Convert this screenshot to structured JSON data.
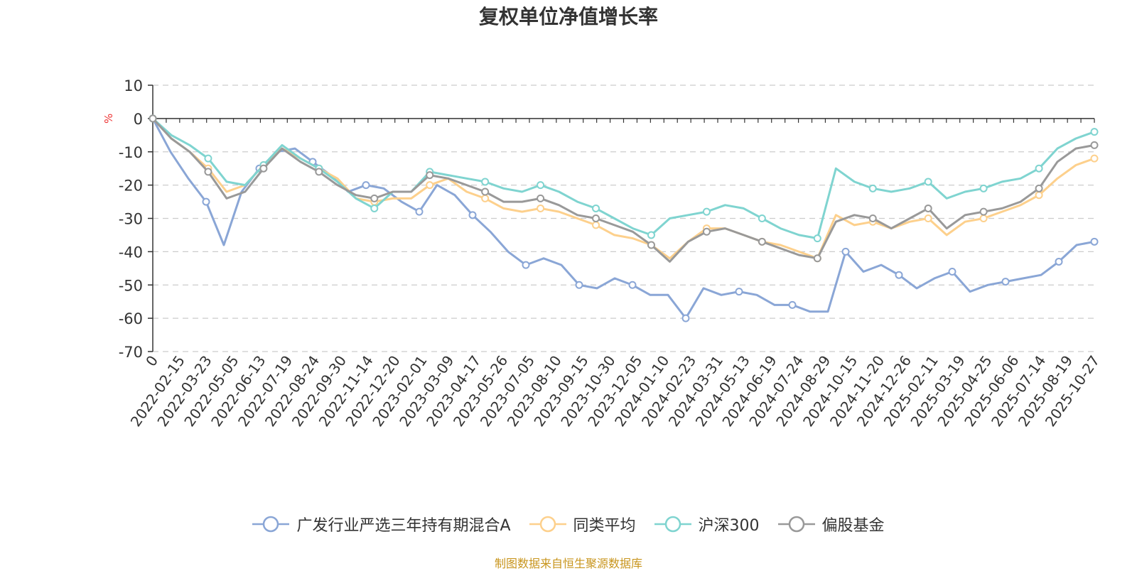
{
  "chart_data": {
    "type": "line",
    "title": "复权单位净值增长率",
    "ylabel": "%",
    "ylim": [
      -70,
      10
    ],
    "yticks": [
      10,
      0,
      -10,
      -20,
      -30,
      -40,
      -50,
      -60,
      -70
    ],
    "x_tick_labels": [
      "0",
      "2022-02-15",
      "2022-03-23",
      "2022-05-05",
      "2022-06-13",
      "2022-07-19",
      "2022-08-24",
      "2022-09-30",
      "2022-11-14",
      "2022-12-20",
      "2023-02-01",
      "2023-03-09",
      "2023-04-17",
      "2023-05-26",
      "2023-07-05",
      "2023-08-10",
      "2023-09-15",
      "2023-10-30",
      "2023-12-05",
      "2024-01-10",
      "2024-02-23",
      "2024-03-31",
      "2024-05-13",
      "2024-06-19",
      "2024-07-24",
      "2024-08-29",
      "2024-10-15",
      "2024-11-20",
      "2024-12-26",
      "2025-02-11",
      "2025-03-19",
      "2025-04-25",
      "2025-06-06",
      "2025-07-14",
      "2025-08-19",
      "2025-10-27"
    ],
    "grid": "horizontal-dashed",
    "legend_position": "bottom",
    "series": [
      {
        "name": "广发行业严选三年持有期混合A",
        "color": "#8aa6d6",
        "values": [
          0,
          -10,
          -18,
          -25,
          -38,
          -22,
          -15,
          -10,
          -9,
          -13,
          -17,
          -22,
          -20,
          -21,
          -25,
          -28,
          -20,
          -23,
          -29,
          -34,
          -40,
          -44,
          -42,
          -44,
          -50,
          -51,
          -48,
          -50,
          -53,
          -53,
          -60,
          -51,
          -53,
          -52,
          -53,
          -56,
          -56,
          -58,
          -58,
          -40,
          -46,
          -44,
          -47,
          -51,
          -48,
          -46,
          -52,
          -50,
          -49,
          -48,
          -47,
          -43,
          -38,
          -37
        ]
      },
      {
        "name": "同类平均",
        "color": "#fdd08c",
        "values": [
          0,
          -6,
          -10,
          -15,
          -22,
          -20,
          -14,
          -9,
          -12,
          -15,
          -18,
          -24,
          -25,
          -24,
          -24,
          -20,
          -18,
          -22,
          -24,
          -27,
          -28,
          -27,
          -28,
          -30,
          -32,
          -35,
          -36,
          -38,
          -42,
          -37,
          -33,
          -33,
          -35,
          -37,
          -38,
          -40,
          -42,
          -29,
          -32,
          -31,
          -33,
          -31,
          -30,
          -35,
          -31,
          -30,
          -28,
          -26,
          -23,
          -18,
          -14,
          -12
        ]
      },
      {
        "name": "沪深300",
        "color": "#7fd4d0",
        "values": [
          0,
          -5,
          -8,
          -12,
          -19,
          -20,
          -14,
          -8,
          -12,
          -15,
          -19,
          -24,
          -27,
          -22,
          -22,
          -16,
          -17,
          -18,
          -19,
          -21,
          -22,
          -20,
          -22,
          -25,
          -27,
          -30,
          -33,
          -35,
          -30,
          -29,
          -28,
          -26,
          -27,
          -30,
          -33,
          -35,
          -36,
          -15,
          -19,
          -21,
          -22,
          -21,
          -19,
          -24,
          -22,
          -21,
          -19,
          -18,
          -15,
          -9,
          -6,
          -4
        ]
      },
      {
        "name": "偏股基金",
        "color": "#999999",
        "values": [
          0,
          -6,
          -10,
          -16,
          -24,
          -22,
          -15,
          -9,
          -13,
          -16,
          -20,
          -23,
          -24,
          -22,
          -22,
          -17,
          -18,
          -20,
          -22,
          -25,
          -25,
          -24,
          -26,
          -29,
          -30,
          -32,
          -34,
          -38,
          -43,
          -37,
          -34,
          -33,
          -35,
          -37,
          -39,
          -41,
          -42,
          -31,
          -29,
          -30,
          -33,
          -30,
          -27,
          -33,
          -29,
          -28,
          -27,
          -25,
          -21,
          -13,
          -9,
          -8
        ]
      }
    ]
  },
  "source_note": "制图数据来自恒生聚源数据库"
}
